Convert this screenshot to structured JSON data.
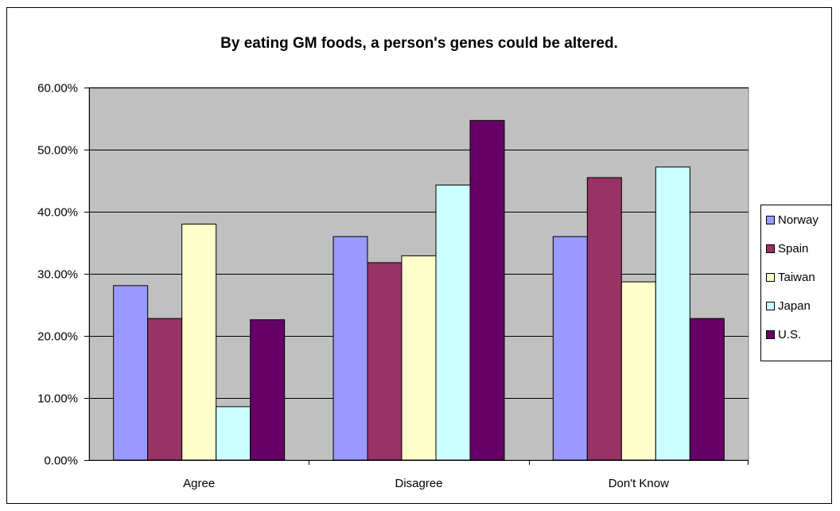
{
  "chart_data": {
    "type": "bar",
    "title": "By eating GM foods, a person's genes could be altered.",
    "xlabel": "",
    "ylabel": "",
    "categories": [
      "Agree",
      "Disagree",
      "Don't Know"
    ],
    "ylim": [
      0,
      0.6
    ],
    "yticks": [
      "0.00%",
      "10.00%",
      "20.00%",
      "30.00%",
      "40.00%",
      "50.00%",
      "60.00%"
    ],
    "grid": true,
    "legend_position": "right",
    "plot_background": "#c0c0c0",
    "series": [
      {
        "name": "Norway",
        "color": "#9999ff",
        "values": [
          0.281,
          0.36,
          0.36
        ]
      },
      {
        "name": "Spain",
        "color": "#993366",
        "values": [
          0.228,
          0.318,
          0.455
        ]
      },
      {
        "name": "Taiwan",
        "color": "#ffffcc",
        "values": [
          0.38,
          0.329,
          0.287
        ]
      },
      {
        "name": "Japan",
        "color": "#ccffff",
        "values": [
          0.086,
          0.443,
          0.472
        ]
      },
      {
        "name": "U.S.",
        "color": "#660066",
        "values": [
          0.226,
          0.547,
          0.228
        ]
      }
    ]
  }
}
